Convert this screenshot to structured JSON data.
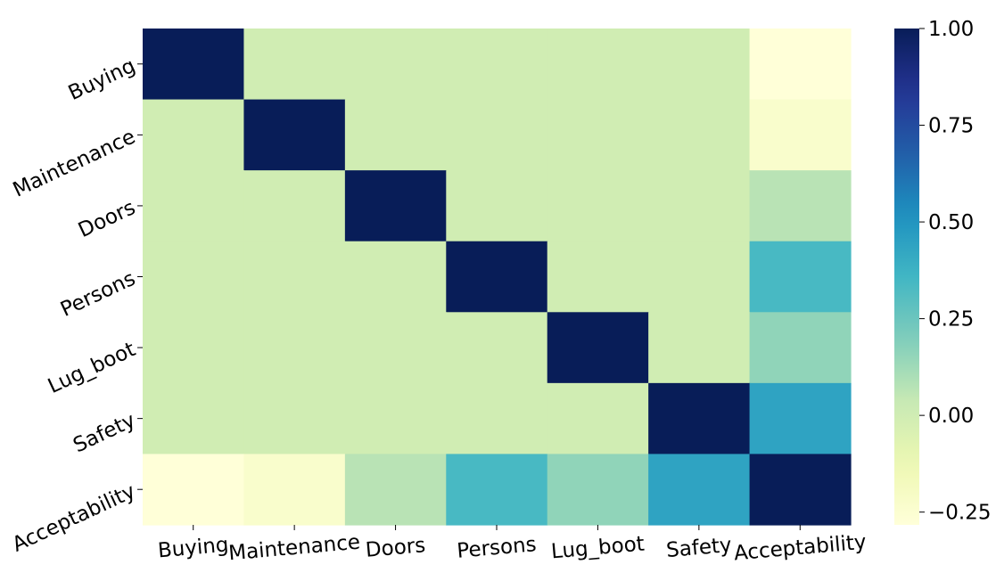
{
  "chart_data": {
    "type": "heatmap",
    "title": "",
    "xlabel": "",
    "ylabel": "",
    "x_labels": [
      "Buying",
      "Maintenance",
      "Doors",
      "Persons",
      "Lug_boot",
      "Safety",
      "Acceptability"
    ],
    "y_labels": [
      "Buying",
      "Maintenance",
      "Doors",
      "Persons",
      "Lug_boot",
      "Safety",
      "Acceptability"
    ],
    "values": [
      [
        1.0,
        0.0,
        0.0,
        0.0,
        0.0,
        0.0,
        -0.28
      ],
      [
        0.0,
        1.0,
        0.0,
        0.0,
        0.0,
        0.0,
        -0.23
      ],
      [
        0.0,
        0.0,
        1.0,
        0.0,
        0.0,
        0.0,
        0.07
      ],
      [
        0.0,
        0.0,
        0.0,
        1.0,
        0.0,
        0.0,
        0.34
      ],
      [
        0.0,
        0.0,
        0.0,
        0.0,
        1.0,
        0.0,
        0.16
      ],
      [
        0.0,
        0.0,
        0.0,
        0.0,
        0.0,
        1.0,
        0.44
      ],
      [
        -0.28,
        -0.23,
        0.07,
        0.34,
        0.16,
        0.44,
        1.0
      ]
    ],
    "colormap": "YlGnBu",
    "colorbar": {
      "range": [
        -0.283,
        1.0
      ],
      "ticks": [
        1.0,
        0.75,
        0.5,
        0.25,
        0.0,
        -0.25
      ],
      "tick_labels": [
        "1.00",
        "0.75",
        "0.50",
        "0.25",
        "0.00",
        "−0.25"
      ]
    },
    "grid": false,
    "legend": "colorbar-right"
  }
}
